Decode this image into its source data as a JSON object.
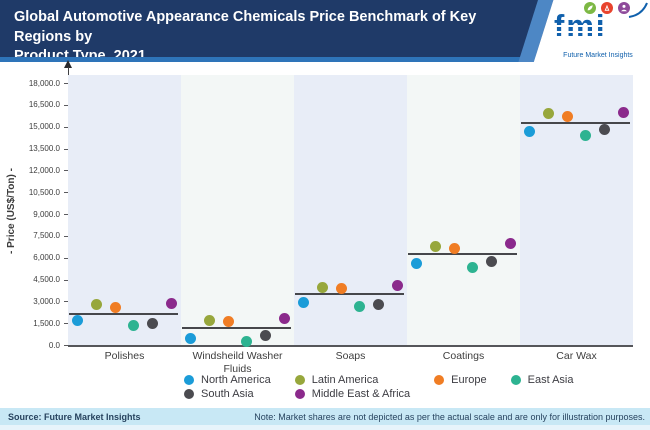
{
  "header": {
    "title_line1": "Global Automotive Appearance Chemicals Price Benchmark of Key Regions by",
    "title_line2": "Product Type, 2021",
    "logo": {
      "text": "fmi",
      "subtext": "Future Market Insights",
      "circle_colors": [
        "#7db844",
        "#e8432d",
        "#8e4a9a"
      ],
      "brand_blue": "#1060ac"
    }
  },
  "chart_data": {
    "type": "scatter",
    "title": "Global Automotive Appearance Chemicals Price Benchmark of Key Regions by Product Type, 2021",
    "ylabel": "- Price (US$/Ton) -",
    "xlabel": "",
    "ylim": [
      0,
      18000
    ],
    "ytick_step": 1500,
    "ytick_labels": [
      "18,000.0",
      "16,500.0",
      "15,000.0",
      "13,500.0",
      "12,000.0",
      "10,500.0",
      "9,000.0",
      "7,500.0",
      "6,000.0",
      "4,500.0",
      "3,000.0",
      "1,500.0",
      "0.0"
    ],
    "grid": false,
    "legend_position": "bottom",
    "band_colors": [
      "#e8edf7",
      "#f3f7f6"
    ],
    "categories": [
      "Polishes",
      "Windsheild Washer Fluids",
      "Soaps",
      "Coatings",
      "Car Wax"
    ],
    "series": [
      {
        "name": "North America",
        "color": "#1b9cd8",
        "values": [
          1650,
          450,
          2950,
          5600,
          14700
        ]
      },
      {
        "name": "Latin America",
        "color": "#97a73c",
        "values": [
          2750,
          1700,
          3950,
          6750,
          15900
        ]
      },
      {
        "name": "Europe",
        "color": "#f07d24",
        "values": [
          2600,
          1600,
          3850,
          6600,
          15700
        ]
      },
      {
        "name": "East Asia",
        "color": "#2db391",
        "values": [
          1350,
          250,
          2650,
          5350,
          14400
        ]
      },
      {
        "name": "South Asia",
        "color": "#4b4b50",
        "values": [
          1500,
          650,
          2800,
          5750,
          14800
        ]
      },
      {
        "name": "Middle East & Africa",
        "color": "#8b2a8c",
        "values": [
          2850,
          1850,
          4100,
          6950,
          16000
        ]
      }
    ],
    "average_lines": [
      2150,
      1150,
      3500,
      6250,
      15250
    ]
  },
  "footer": {
    "source": "Source: Future Market Insights",
    "note": "Note: Market shares are not depicted as per the actual scale and are only for illustration purposes."
  }
}
